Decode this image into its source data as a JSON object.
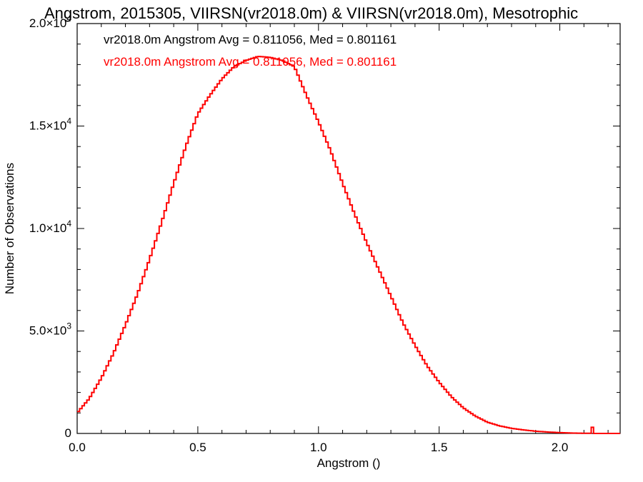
{
  "chart_data": {
    "type": "line",
    "title": "Angstrom, 2015305, VIIRSN(vr2018.0m) & VIIRSN(vr2018.0m), Mesotrophic",
    "xlabel": "Angstrom ()",
    "ylabel": "Number of Observations",
    "xlim": [
      0.0,
      2.25
    ],
    "ylim": [
      0,
      20000
    ],
    "x_ticks": [
      {
        "value": 0.0,
        "label": "0.0"
      },
      {
        "value": 0.5,
        "label": "0.5"
      },
      {
        "value": 1.0,
        "label": "1.0"
      },
      {
        "value": 1.5,
        "label": "1.5"
      },
      {
        "value": 2.0,
        "label": "2.0"
      }
    ],
    "y_ticks": [
      {
        "value": 0,
        "mant": "0",
        "exp": ""
      },
      {
        "value": 5000,
        "mant": "5.0×10",
        "exp": "3"
      },
      {
        "value": 10000,
        "mant": "1.0×10",
        "exp": "4"
      },
      {
        "value": 15000,
        "mant": "1.5×10",
        "exp": "4"
      },
      {
        "value": 20000,
        "mant": "2.0×10",
        "exp": "4"
      }
    ],
    "annotations": [
      {
        "text": "vr2018.0m Angstrom Avg = 0.811056, Med = 0.801161",
        "color": "#000000"
      },
      {
        "text": "vr2018.0m Angstrom Avg = 0.811056, Med = 0.801161",
        "color": "#ff0000"
      }
    ],
    "series": [
      {
        "color": "#ff0000",
        "step": true,
        "x": [
          0.0,
          0.05,
          0.1,
          0.15,
          0.2,
          0.25,
          0.3,
          0.35,
          0.4,
          0.45,
          0.5,
          0.55,
          0.6,
          0.65,
          0.7,
          0.75,
          0.8,
          0.85,
          0.9,
          0.95,
          1.0,
          1.05,
          1.1,
          1.15,
          1.2,
          1.25,
          1.3,
          1.35,
          1.4,
          1.45,
          1.5,
          1.55,
          1.6,
          1.65,
          1.7,
          1.75,
          1.8,
          1.85,
          1.9,
          1.95,
          2.0,
          2.05,
          2.1,
          2.13,
          2.135,
          2.14,
          2.25
        ],
        "y": [
          1000,
          1700,
          2700,
          3900,
          5300,
          6800,
          8500,
          10300,
          12200,
          14000,
          15600,
          16500,
          17300,
          17900,
          18200,
          18400,
          18350,
          18200,
          17900,
          16500,
          15200,
          13800,
          12200,
          10700,
          9300,
          8000,
          6700,
          5400,
          4300,
          3300,
          2500,
          1800,
          1250,
          850,
          550,
          370,
          250,
          170,
          110,
          70,
          40,
          20,
          10,
          10,
          300,
          0,
          0
        ]
      }
    ]
  }
}
